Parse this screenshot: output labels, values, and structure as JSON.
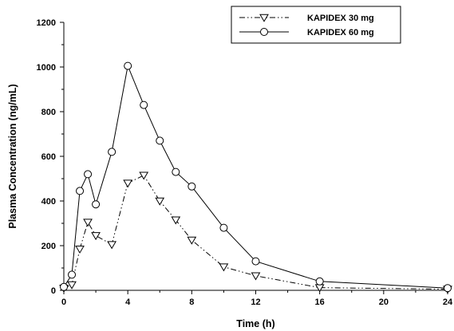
{
  "chart_data": {
    "type": "line",
    "xlabel": "Time (h)",
    "ylabel": "Plasma Concentration (ng/mL)",
    "xlim": [
      0,
      24
    ],
    "ylim": [
      0,
      1200
    ],
    "x_ticks": [
      0,
      4,
      8,
      12,
      16,
      20,
      24
    ],
    "y_ticks": [
      0,
      200,
      400,
      600,
      800,
      1000,
      1200
    ],
    "grid": false,
    "legend_position": "top-right",
    "series": [
      {
        "name": "KAPIDEX 30 mg",
        "line_style": "dash-dot-dot",
        "marker": "triangle-down",
        "color": "#000000",
        "points": [
          [
            0,
            10
          ],
          [
            0.5,
            25
          ],
          [
            1,
            185
          ],
          [
            1.5,
            305
          ],
          [
            2,
            245
          ],
          [
            3,
            205
          ],
          [
            4,
            480
          ],
          [
            5,
            515
          ],
          [
            6,
            400
          ],
          [
            7,
            315
          ],
          [
            8,
            225
          ],
          [
            10,
            105
          ],
          [
            12,
            65
          ],
          [
            16,
            12
          ],
          [
            24,
            5
          ]
        ]
      },
      {
        "name": "KAPIDEX 60 mg",
        "line_style": "solid",
        "marker": "circle",
        "color": "#000000",
        "points": [
          [
            0,
            15
          ],
          [
            0.5,
            70
          ],
          [
            1,
            445
          ],
          [
            1.5,
            520
          ],
          [
            2,
            385
          ],
          [
            3,
            620
          ],
          [
            4,
            1005
          ],
          [
            5,
            830
          ],
          [
            6,
            670
          ],
          [
            7,
            530
          ],
          [
            8,
            465
          ],
          [
            10,
            280
          ],
          [
            12,
            130
          ],
          [
            16,
            40
          ],
          [
            24,
            10
          ]
        ]
      }
    ]
  }
}
